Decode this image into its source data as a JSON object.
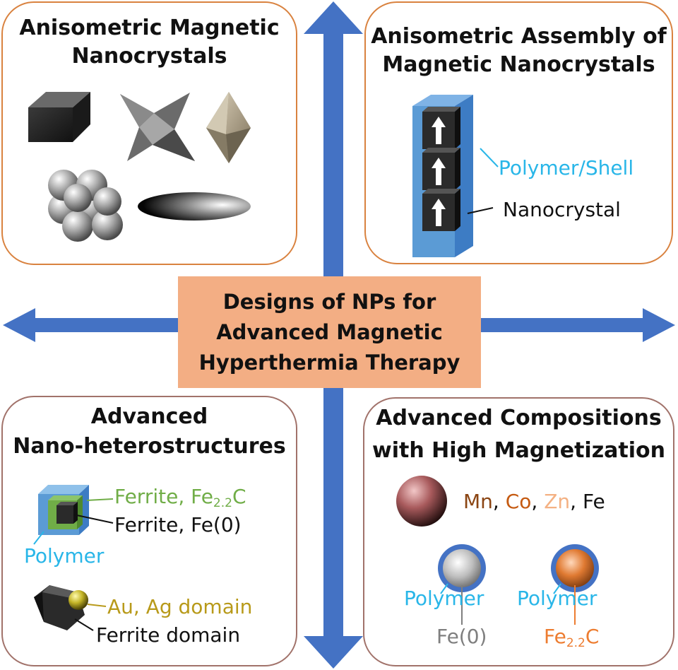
{
  "center": {
    "line1": "Designs of NPs for",
    "line2": "Advanced Magnetic",
    "line3": "Hyperthermia Therapy"
  },
  "top_left": {
    "title_line1": "Anisometric Magnetic",
    "title_line2": "Nanocrystals"
  },
  "top_right": {
    "title_line1": "Anisometric Assembly of",
    "title_line2": "Magnetic Nanocrystals",
    "shell_label": "Polymer/Shell",
    "core_label": "Nanocrystal"
  },
  "bottom_left": {
    "title_line1": "Advanced",
    "title_line2": "Nano-heterostructures",
    "outer_label": "Ferrite, Fe",
    "outer_sub": "2.2",
    "outer_suffix": "C",
    "inner_label": "Ferrite, Fe(0)",
    "polymer_label": "Polymer",
    "domain_label": "Au, Ag domain",
    "ferrite_domain_label": "Ferrite domain"
  },
  "bottom_right": {
    "title_line1": "Advanced Compositions",
    "title_line2": "with High Magnetization",
    "mn": "Mn",
    "sep1": ",",
    "co": "Co",
    "sep2": ",",
    "zn": "Zn",
    "fe": ", Fe",
    "polymer_left": "Polymer",
    "core_left": "Fe(0)",
    "polymer_right": "Polymer",
    "core_right_main": "Fe",
    "core_right_sub": "2.2",
    "core_right_suffix": "C"
  },
  "colors": {
    "arrow": "#4472c4",
    "center_box": "#f3ae84",
    "panel_border_top": "#d9823f",
    "panel_border_bottom": "#a1726a",
    "cyan_label": "#29b6e8",
    "green_label": "#70ad47",
    "gold_label": "#b89a1a",
    "mn_color": "#8b4513",
    "co_color": "#c55a11",
    "zn_color": "#f4b183",
    "fe_c_color": "#ed7d31",
    "gray_label": "#7f7f7f"
  }
}
